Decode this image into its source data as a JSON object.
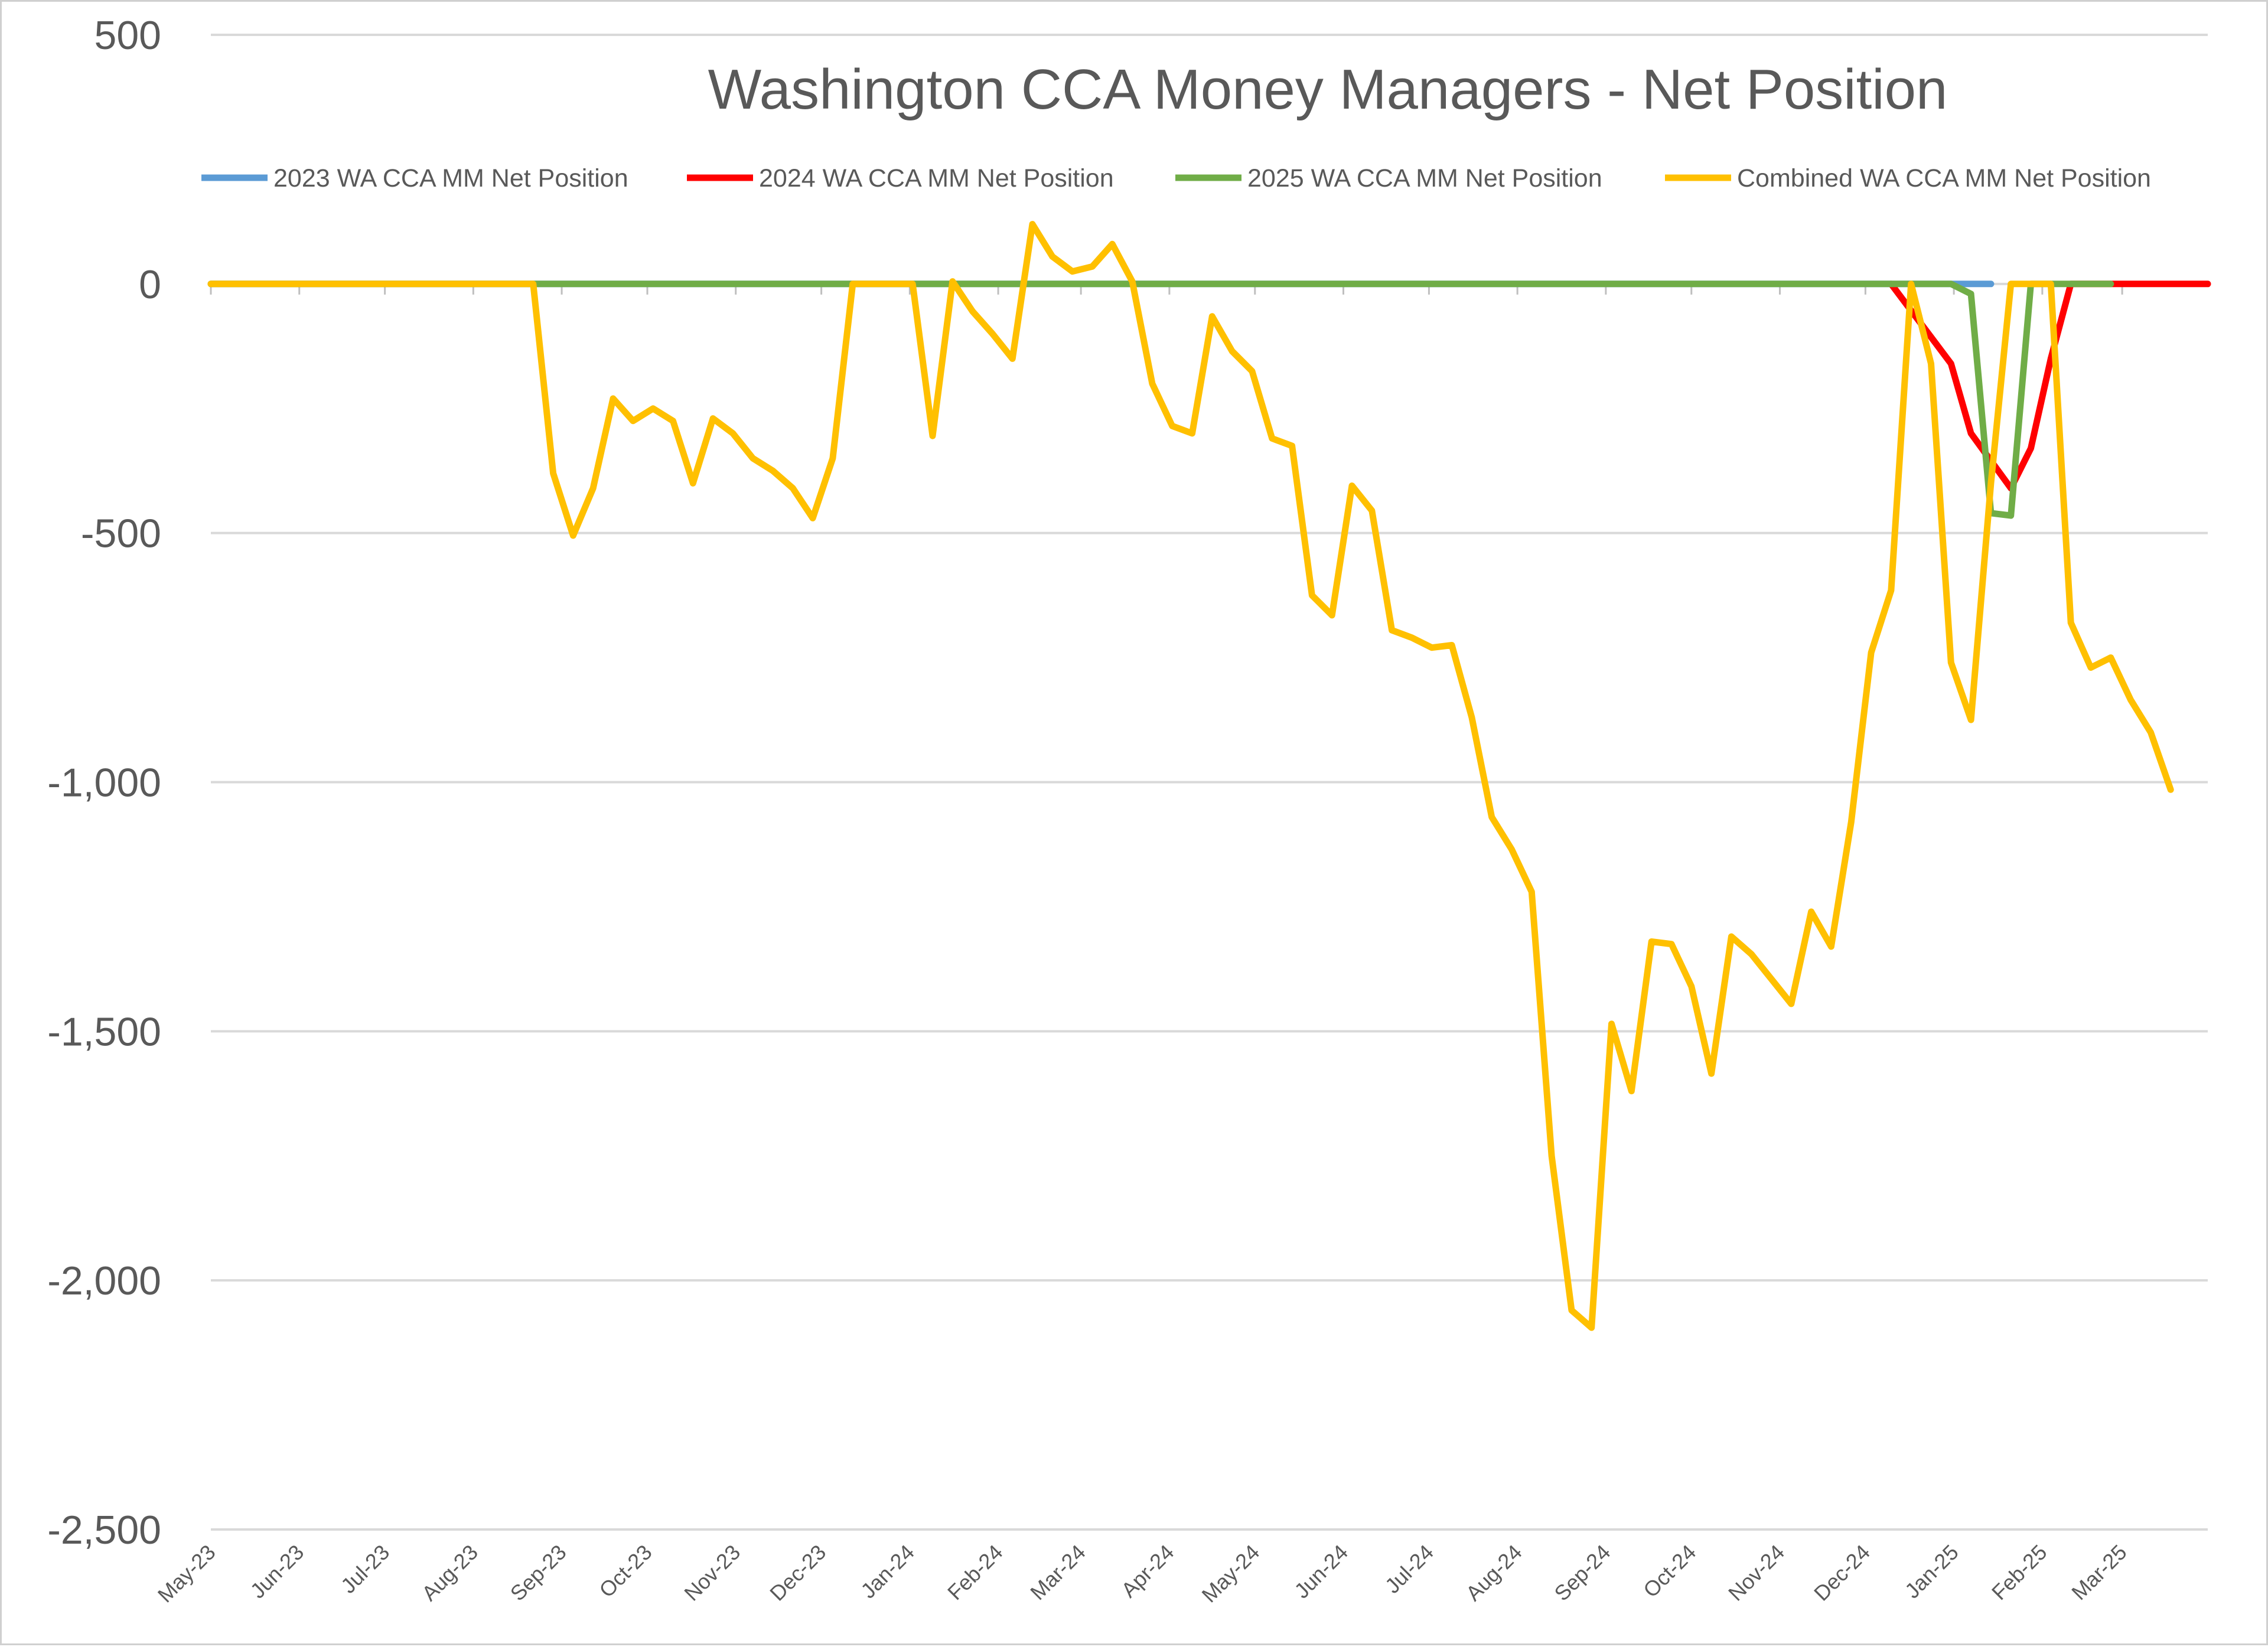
{
  "chart_data": {
    "type": "line",
    "title": "Washington CCA Money Managers - Net Position",
    "xlabel": "",
    "ylabel": "",
    "ylim": [
      -2500,
      500
    ],
    "yticks": [
      500,
      0,
      -500,
      -1000,
      -1500,
      -2000,
      -2500
    ],
    "ytick_labels": [
      "500",
      "0",
      "-500",
      "-1,000",
      "-1,500",
      "-2,000",
      "-2,500"
    ],
    "xlim": [
      "2023-05-01",
      "2025-03-31"
    ],
    "xtick_labels": [
      "May-23",
      "Jun-23",
      "Jul-23",
      "Aug-23",
      "Sep-23",
      "Oct-23",
      "Nov-23",
      "Dec-23",
      "Jan-24",
      "Feb-24",
      "Mar-24",
      "Apr-24",
      "May-24",
      "Jun-24",
      "Jul-24",
      "Aug-24",
      "Sep-24",
      "Oct-24",
      "Nov-24",
      "Dec-24",
      "Jan-25",
      "Feb-25",
      "Mar-25"
    ],
    "grid": true,
    "legend_position": "top",
    "series": [
      {
        "name": "2023 WA CCA MM Net Position",
        "color": "#5b9bd5",
        "points": [
          [
            "2023-05-01",
            0
          ],
          [
            "2024-12-31",
            0
          ],
          [
            "2025-01-14",
            0
          ]
        ]
      },
      {
        "name": "2024 WA CCA MM Net Position",
        "color": "#ff0000",
        "points": [
          [
            "2024-12-10",
            0
          ],
          [
            "2024-12-31",
            -160
          ],
          [
            "2025-01-07",
            -300
          ],
          [
            "2025-01-21",
            -410
          ],
          [
            "2025-01-28",
            -330
          ],
          [
            "2025-02-04",
            -150
          ],
          [
            "2025-02-11",
            0
          ],
          [
            "2025-03-31",
            0
          ]
        ]
      },
      {
        "name": "2025 WA CCA MM Net Position",
        "color": "#70ad47",
        "points": [
          [
            "2023-05-01",
            0
          ],
          [
            "2024-12-31",
            0
          ],
          [
            "2025-01-07",
            -20
          ],
          [
            "2025-01-14",
            -460
          ],
          [
            "2025-01-21",
            -465
          ],
          [
            "2025-01-28",
            0
          ],
          [
            "2025-02-25",
            0
          ]
        ]
      },
      {
        "name": "Combined WA CCA MM Net Position",
        "color": "#ffc000",
        "points": [
          [
            "2023-05-01",
            0
          ],
          [
            "2023-08-22",
            0
          ],
          [
            "2023-08-29",
            -380
          ],
          [
            "2023-09-05",
            -505
          ],
          [
            "2023-09-12",
            -410
          ],
          [
            "2023-09-19",
            -230
          ],
          [
            "2023-09-26",
            -275
          ],
          [
            "2023-10-03",
            -250
          ],
          [
            "2023-10-10",
            -275
          ],
          [
            "2023-10-17",
            -400
          ],
          [
            "2023-10-24",
            -270
          ],
          [
            "2023-10-31",
            -300
          ],
          [
            "2023-11-07",
            -350
          ],
          [
            "2023-11-14",
            -375
          ],
          [
            "2023-11-21",
            -410
          ],
          [
            "2023-11-28",
            -470
          ],
          [
            "2023-12-05",
            -350
          ],
          [
            "2023-12-12",
            0
          ],
          [
            "2023-12-19",
            0
          ],
          [
            "2023-12-26",
            0
          ],
          [
            "2024-01-02",
            0
          ],
          [
            "2024-01-09",
            -305
          ],
          [
            "2024-01-16",
            5
          ],
          [
            "2024-01-23",
            -55
          ],
          [
            "2024-01-30",
            -100
          ],
          [
            "2024-02-06",
            -150
          ],
          [
            "2024-02-13",
            120
          ],
          [
            "2024-02-20",
            55
          ],
          [
            "2024-02-27",
            25
          ],
          [
            "2024-03-05",
            35
          ],
          [
            "2024-03-12",
            80
          ],
          [
            "2024-03-19",
            5
          ],
          [
            "2024-03-26",
            -200
          ],
          [
            "2024-04-02",
            -285
          ],
          [
            "2024-04-09",
            -300
          ],
          [
            "2024-04-16",
            -65
          ],
          [
            "2024-04-23",
            -135
          ],
          [
            "2024-04-30",
            -175
          ],
          [
            "2024-05-07",
            -310
          ],
          [
            "2024-05-14",
            -325
          ],
          [
            "2024-05-21",
            -625
          ],
          [
            "2024-05-28",
            -665
          ],
          [
            "2024-06-04",
            -405
          ],
          [
            "2024-06-11",
            -455
          ],
          [
            "2024-06-18",
            -695
          ],
          [
            "2024-06-25",
            -710
          ],
          [
            "2024-07-02",
            -730
          ],
          [
            "2024-07-09",
            -725
          ],
          [
            "2024-07-16",
            -870
          ],
          [
            "2024-07-23",
            -1070
          ],
          [
            "2024-07-30",
            -1135
          ],
          [
            "2024-08-06",
            -1220
          ],
          [
            "2024-08-13",
            -1750
          ],
          [
            "2024-08-20",
            -2060
          ],
          [
            "2024-08-27",
            -2095
          ],
          [
            "2024-09-03",
            -1485
          ],
          [
            "2024-09-10",
            -1620
          ],
          [
            "2024-09-17",
            -1320
          ],
          [
            "2024-09-24",
            -1325
          ],
          [
            "2024-10-01",
            -1410
          ],
          [
            "2024-10-08",
            -1585
          ],
          [
            "2024-10-15",
            -1310
          ],
          [
            "2024-10-22",
            -1345
          ],
          [
            "2024-10-29",
            -1395
          ],
          [
            "2024-11-05",
            -1445
          ],
          [
            "2024-11-12",
            -1260
          ],
          [
            "2024-11-19",
            -1330
          ],
          [
            "2024-11-26",
            -1080
          ],
          [
            "2024-12-03",
            -740
          ],
          [
            "2024-12-10",
            -615
          ],
          [
            "2024-12-17",
            0
          ],
          [
            "2024-12-24",
            -160
          ],
          [
            "2024-12-31",
            -760
          ],
          [
            "2025-01-07",
            -875
          ],
          [
            "2025-01-14",
            -400
          ],
          [
            "2025-01-21",
            0
          ],
          [
            "2025-01-28",
            0
          ],
          [
            "2025-02-04",
            0
          ],
          [
            "2025-02-11",
            -680
          ],
          [
            "2025-02-18",
            -770
          ],
          [
            "2025-02-25",
            -750
          ],
          [
            "2025-03-04",
            -835
          ],
          [
            "2025-03-11",
            -900
          ],
          [
            "2025-03-18",
            -1015
          ]
        ]
      }
    ]
  }
}
